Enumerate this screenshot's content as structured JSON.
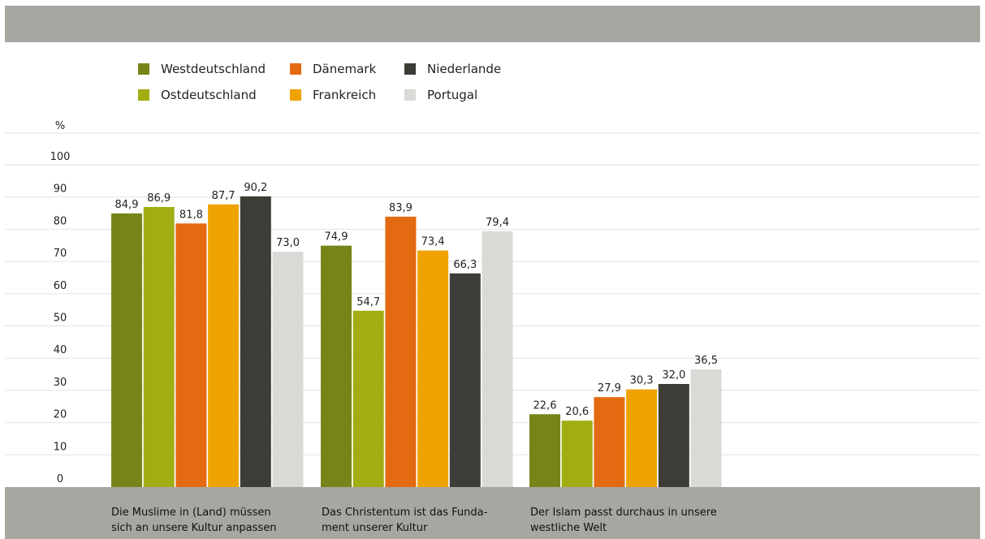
{
  "chart_data": {
    "type": "bar",
    "ylabel": "%",
    "ylim": [
      0,
      100
    ],
    "yticks": [
      "0",
      "10",
      "20",
      "30",
      "40",
      "50",
      "60",
      "70",
      "80",
      "90",
      "100"
    ],
    "grid": true,
    "legend_position": "top-left",
    "categories": [
      "Die Muslime in (Land) müssen\nsich an unsere Kultur anpassen",
      "Das Christentum ist das Funda-\nment unserer Kultur",
      "Der Islam passt durchaus in unsere\nwestliche Welt"
    ],
    "series": [
      {
        "name": "Westdeutschland",
        "color": "#788419",
        "values": [
          84.9,
          74.9,
          22.6
        ],
        "labels": [
          "84,9",
          "74,9",
          "22,6"
        ]
      },
      {
        "name": "Ostdeutschland",
        "color": "#a1ad12",
        "values": [
          86.9,
          54.7,
          20.6
        ],
        "labels": [
          "86,9",
          "54,7",
          "20,6"
        ]
      },
      {
        "name": "Dänemark",
        "color": "#e46a12",
        "values": [
          81.8,
          83.9,
          27.9
        ],
        "labels": [
          "81,8",
          "83,9",
          "27,9"
        ]
      },
      {
        "name": "Frankreich",
        "color": "#efa300",
        "values": [
          87.7,
          73.4,
          30.3
        ],
        "labels": [
          "87,7",
          "73,4",
          "30,3"
        ]
      },
      {
        "name": "Niederlande",
        "color": "#3d3c36",
        "values": [
          90.2,
          66.3,
          32.0
        ],
        "labels": [
          "90,2",
          "66,3",
          "32,0"
        ]
      },
      {
        "name": "Portugal",
        "color": "#d9d9d6",
        "values": [
          73.0,
          79.4,
          36.5
        ],
        "labels": [
          "73,0",
          "79,4",
          "36,5"
        ]
      }
    ]
  }
}
